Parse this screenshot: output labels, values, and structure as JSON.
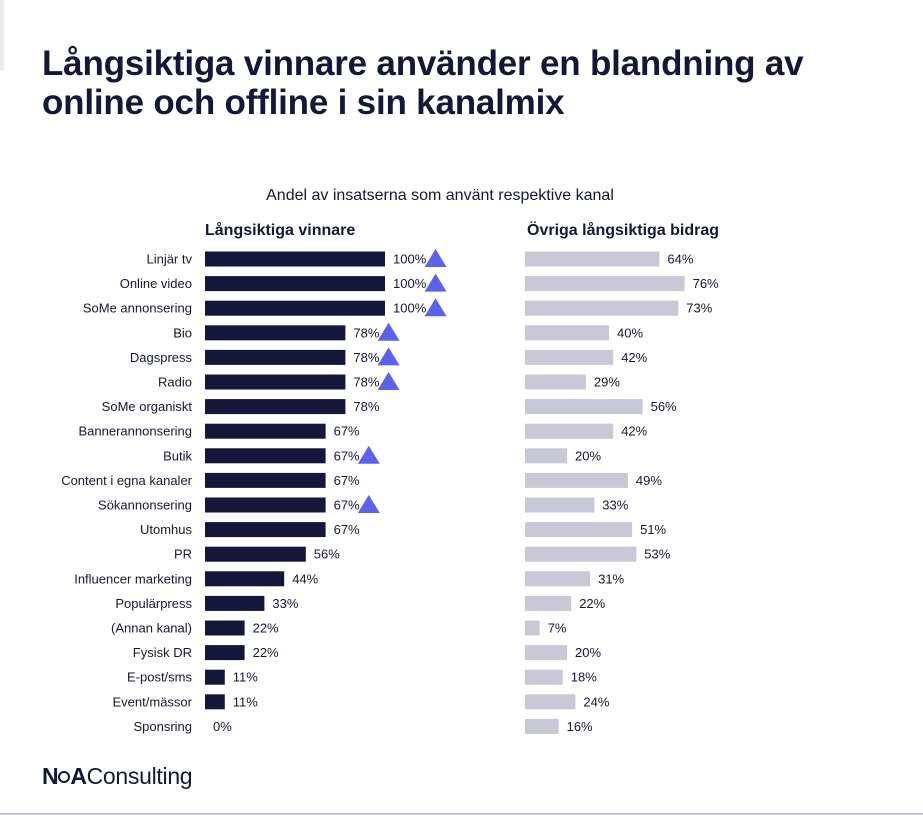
{
  "title": "Långsiktiga vinnare använder en blandning av online och offline i sin kanalmix",
  "brand": {
    "mark_n": "N",
    "mark_a": "A",
    "name": "Consulting"
  },
  "chart_data": {
    "type": "bar",
    "orientation": "horizontal",
    "subtitle": "Andel av insatserna som använt respektive kanal",
    "xlim": [
      0,
      100
    ],
    "categories": [
      "Linjär tv",
      "Online video",
      "SoMe annonsering",
      "Bio",
      "Dagspress",
      "Radio",
      "SoMe organiskt",
      "Bannerannonsering",
      "Butik",
      "Content i egna kanaler",
      "Sökannonsering",
      "Utomhus",
      "PR",
      "Influencer marketing",
      "Populärpress",
      "(Annan kanal)",
      "Fysisk DR",
      "E-post/sms",
      "Event/mässor",
      "Sponsring"
    ],
    "series": [
      {
        "name": "Långsiktiga vinnare",
        "color": "#14173a",
        "values": [
          100,
          100,
          100,
          78,
          78,
          78,
          78,
          67,
          67,
          67,
          67,
          67,
          56,
          44,
          33,
          22,
          22,
          11,
          11,
          0
        ],
        "labels": [
          "100%",
          "100%",
          "100%",
          "78%",
          "78%",
          "78%",
          "78%",
          "67%",
          "67%",
          "67%",
          "67%",
          "67%",
          "56%",
          "44%",
          "33%",
          "22%",
          "22%",
          "11%",
          "11%",
          "0%"
        ],
        "marker_color": "#5b63e8",
        "markers": [
          true,
          true,
          true,
          true,
          true,
          true,
          false,
          false,
          true,
          false,
          true,
          false,
          false,
          false,
          false,
          false,
          false,
          false,
          false,
          false
        ]
      },
      {
        "name": "Övriga långsiktiga bidrag",
        "color": "#c9c8d6",
        "values": [
          64,
          76,
          73,
          40,
          42,
          29,
          56,
          42,
          20,
          49,
          33,
          51,
          53,
          31,
          22,
          7,
          20,
          18,
          24,
          16
        ],
        "labels": [
          "64%",
          "76%",
          "73%",
          "40%",
          "42%",
          "29%",
          "56%",
          "42%",
          "20%",
          "49%",
          "33%",
          "51%",
          "53%",
          "31%",
          "22%",
          "7%",
          "20%",
          "18%",
          "24%",
          "16%"
        ]
      }
    ]
  }
}
